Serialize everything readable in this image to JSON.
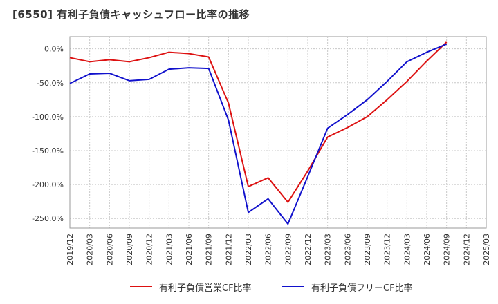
{
  "chart_data": {
    "type": "line",
    "title": "[6550]  有利子負債キャッシュフロー比率の推移",
    "xlabel": "",
    "ylabel": "",
    "x": [
      "2019/12",
      "2020/03",
      "2020/06",
      "2020/09",
      "2020/12",
      "2021/03",
      "2021/06",
      "2021/09",
      "2021/12",
      "2022/03",
      "2022/06",
      "2022/09",
      "2022/12",
      "2023/03",
      "2023/06",
      "2023/09",
      "2023/12",
      "2024/03",
      "2024/06",
      "2024/09"
    ],
    "x_ticks": [
      "2019/12",
      "2020/03",
      "2020/06",
      "2020/09",
      "2020/12",
      "2021/03",
      "2021/06",
      "2021/09",
      "2021/12",
      "2022/03",
      "2022/06",
      "2022/09",
      "2022/12",
      "2023/03",
      "2023/06",
      "2023/09",
      "2023/12",
      "2024/03",
      "2024/06",
      "2024/09",
      "2024/12",
      "2025/03"
    ],
    "y_ticks": [
      0,
      -50,
      -100,
      -150,
      -200,
      -250
    ],
    "y_tick_labels": [
      "0.0%",
      "-50.0%",
      "-100.0%",
      "-150.0%",
      "-200.0%",
      "-250.0%"
    ],
    "ylim": [
      -264,
      18
    ],
    "grid": true,
    "legend_position": "bottom",
    "series": [
      {
        "name": "有利子負債営業CF比率",
        "color": "#dd1111",
        "values": [
          -13,
          -19,
          -16,
          -19,
          -13,
          -5,
          -7,
          -12,
          -80,
          -203,
          -190,
          -226,
          -180,
          -130,
          -116,
          -100,
          -75,
          -48,
          -18,
          10
        ]
      },
      {
        "name": "有利子負債フリーCF比率",
        "color": "#1111cc",
        "values": [
          -51,
          -37,
          -36,
          -47,
          -45,
          -30,
          -28,
          -29,
          -105,
          -241,
          -221,
          -258,
          -188,
          -117,
          -97,
          -75,
          -48,
          -19,
          -5,
          7
        ]
      }
    ]
  }
}
